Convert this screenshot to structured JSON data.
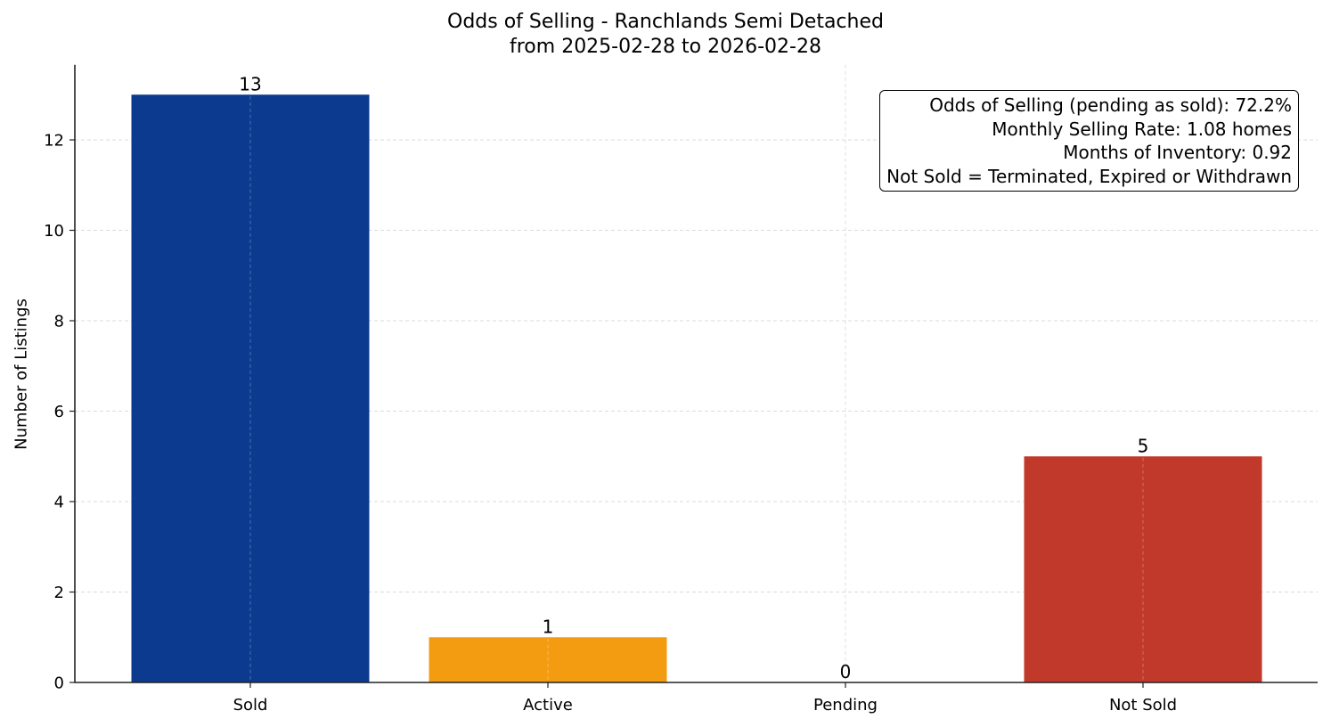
{
  "chart_data": {
    "type": "bar",
    "title": "Odds of Selling - Ranchlands Semi Detached",
    "subtitle": "from 2025-02-28 to 2026-02-28",
    "xlabel": "",
    "ylabel": "Number of Listings",
    "categories": [
      "Sold",
      "Active",
      "Pending",
      "Not Sold"
    ],
    "values": [
      13,
      1,
      0,
      5
    ],
    "colors": [
      "#0b3a8f",
      "#f39c12",
      "#888888",
      "#c0392b"
    ],
    "data_labels": [
      "13",
      "1",
      "0",
      "5"
    ],
    "ylim": [
      0,
      13.66
    ],
    "yticks": [
      0,
      2,
      4,
      6,
      8,
      10,
      12
    ],
    "grid": true,
    "legend": null,
    "annotation_box": [
      "Odds of Selling (pending as sold): 72.2%",
      "Monthly Selling Rate: 1.08 homes",
      "Months of Inventory: 0.92",
      "Not Sold = Terminated, Expired or Withdrawn"
    ]
  },
  "stats": {
    "odds_of_selling": "Odds of Selling (pending as sold): 72.2%",
    "monthly_selling_rate": "Monthly Selling Rate: 1.08 homes",
    "months_of_inventory": "Months of Inventory: 0.92",
    "not_sold_definition": "Not Sold = Terminated, Expired or Withdrawn"
  }
}
